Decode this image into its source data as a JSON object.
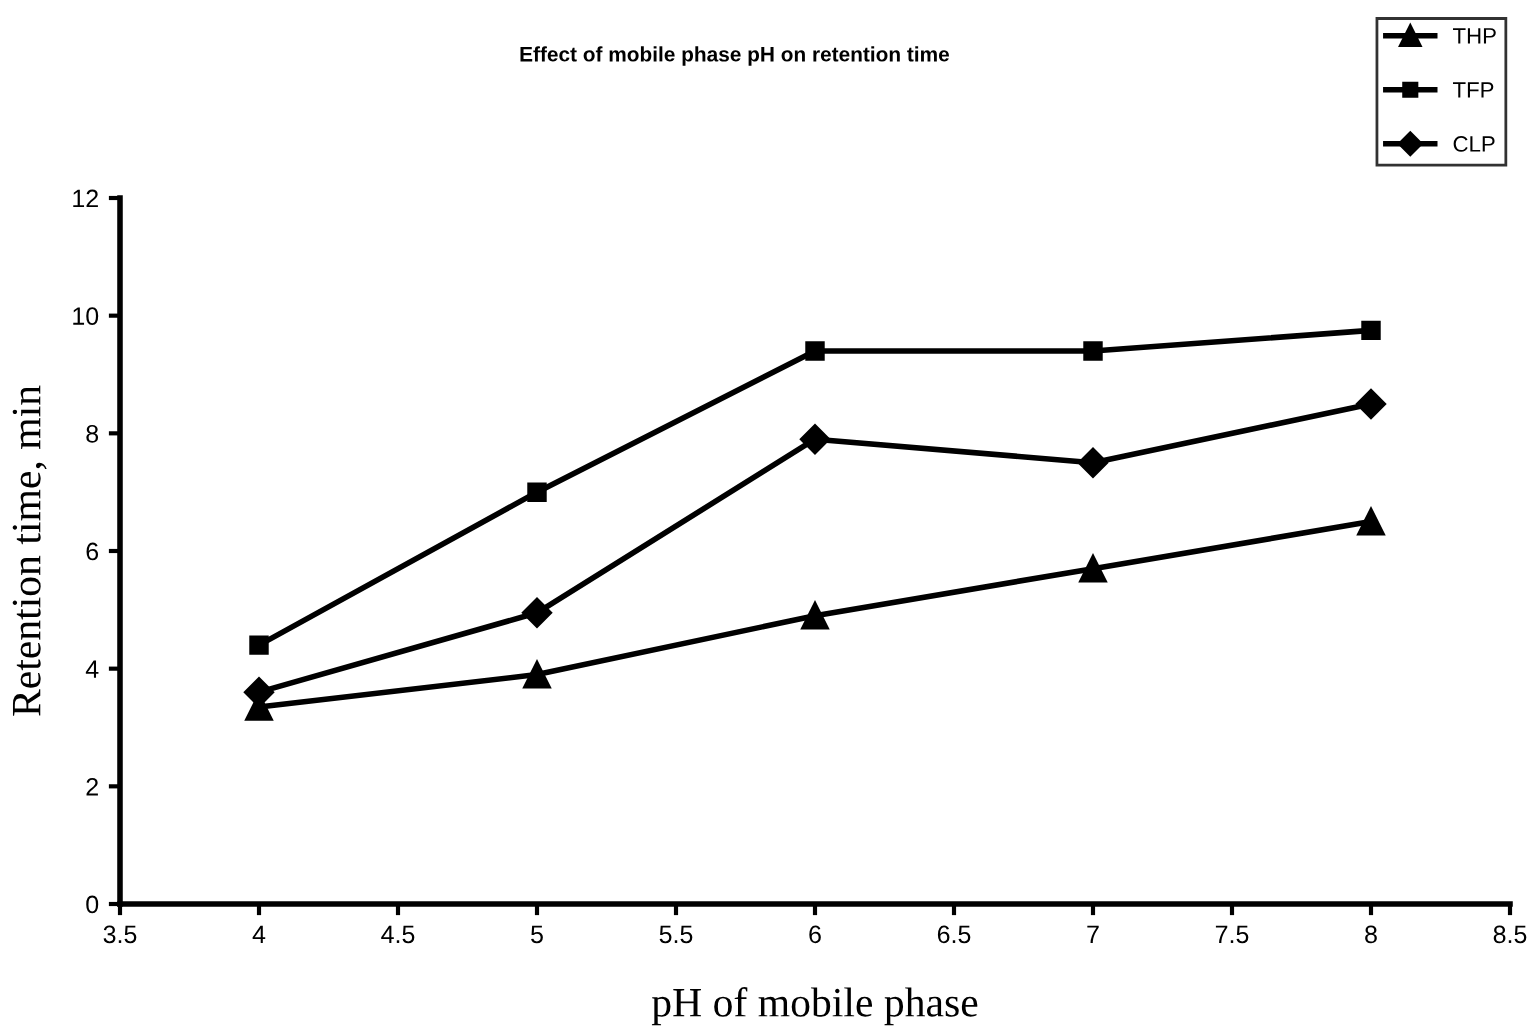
{
  "chart_data": {
    "type": "line",
    "title": "Effect of mobile phase pH on retention time",
    "xlabel": "pH of mobile phase",
    "ylabel": "Retention time, min",
    "x": [
      4,
      5,
      6,
      7,
      8
    ],
    "series": [
      {
        "name": "THP",
        "color": "#000000",
        "marker": "triangle",
        "values": [
          3.35,
          3.9,
          4.9,
          5.7,
          6.5
        ]
      },
      {
        "name": "TFP",
        "color": "#000000",
        "marker": "square",
        "values": [
          4.4,
          7,
          9.4,
          9.4,
          9.75
        ]
      },
      {
        "name": "CLP",
        "color": "#000000",
        "marker": "diamond",
        "values": [
          3.6,
          4.95,
          7.9,
          7.5,
          8.5
        ]
      }
    ],
    "xlim": [
      3.5,
      8.5
    ],
    "xticks": [
      3.5,
      4,
      4.5,
      5,
      5.5,
      6,
      6.5,
      7,
      7.5,
      8,
      8.5
    ],
    "ylim": [
      0,
      12
    ],
    "yticks": [
      0,
      2,
      4,
      6,
      8,
      10,
      12
    ],
    "grid": false,
    "legend": "top right",
    "line_style": "solid"
  }
}
